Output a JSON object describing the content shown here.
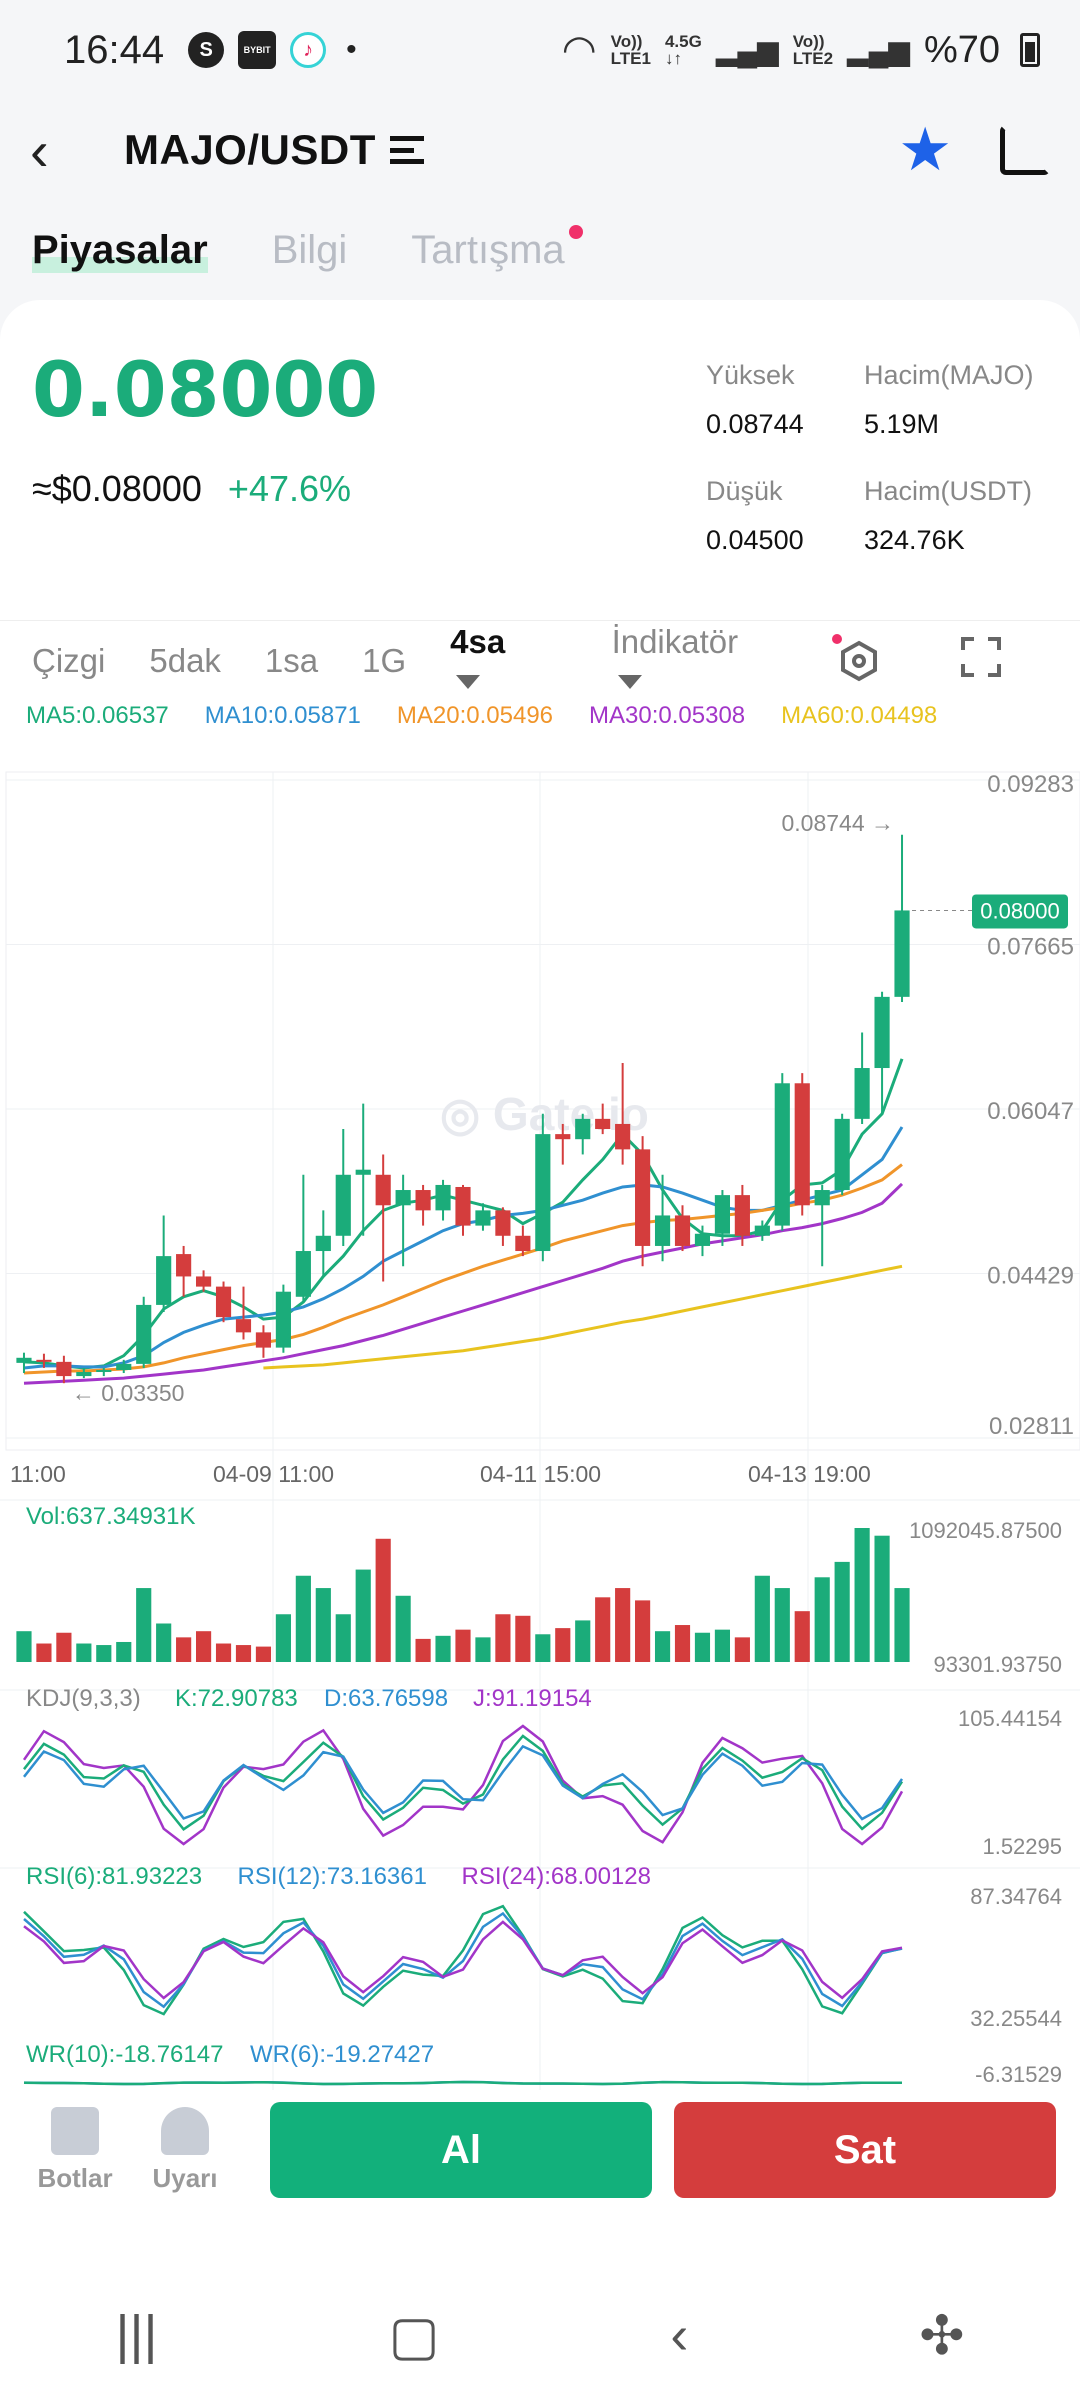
{
  "status": {
    "time": "16:44",
    "battery": "%70",
    "net1": "LTE1",
    "net2": "LTE2",
    "net_speed": "4.5G"
  },
  "header": {
    "pair": "MAJO/USDT"
  },
  "tabs": [
    {
      "label": "Piyasalar"
    },
    {
      "label": "Bilgi"
    },
    {
      "label": "Tartışma"
    }
  ],
  "price": {
    "last": "0.08000",
    "usd": "≈$0.08000",
    "change": "+47.6%"
  },
  "stats": {
    "high_label": "Yüksek",
    "high": "0.08744",
    "vol_majo_label": "Hacim(MAJO)",
    "vol_majo": "5.19M",
    "low_label": "Düşük",
    "low": "0.04500",
    "vol_usdt_label": "Hacim(USDT)",
    "vol_usdt": "324.76K"
  },
  "timeframes": [
    {
      "label": "Çizgi"
    },
    {
      "label": "5dak"
    },
    {
      "label": "1sa"
    },
    {
      "label": "1G"
    },
    {
      "label": "4sa"
    }
  ],
  "indicator_label": "İndikatör",
  "ma": [
    {
      "label": "MA5:0.06537",
      "color": "#1bac7a"
    },
    {
      "label": "MA10:0.05871",
      "color": "#2f8fd0"
    },
    {
      "label": "MA20:0.05496",
      "color": "#f0952a"
    },
    {
      "label": "MA30:0.05308",
      "color": "#a235c8"
    },
    {
      "label": "MA60:0.04498",
      "color": "#e8c31f"
    }
  ],
  "chart_data": {
    "type": "candlestick",
    "y_ticks": [
      "0.09283",
      "0.07665",
      "0.06047",
      "0.04429",
      "0.02811"
    ],
    "x_ticks": [
      "11:00",
      "04-09 11:00",
      "04-11 15:00",
      "04-13 19:00"
    ],
    "high_marker": "0.08744 →",
    "low_marker": "← 0.03350",
    "last_marker": "0.08000",
    "candles": [
      {
        "o": 0.0355,
        "h": 0.0365,
        "l": 0.0345,
        "c": 0.036
      },
      {
        "o": 0.0358,
        "h": 0.0364,
        "l": 0.035,
        "c": 0.0356
      },
      {
        "o": 0.0356,
        "h": 0.0362,
        "l": 0.0335,
        "c": 0.0342
      },
      {
        "o": 0.0342,
        "h": 0.035,
        "l": 0.034,
        "c": 0.0346
      },
      {
        "o": 0.0346,
        "h": 0.035,
        "l": 0.0342,
        "c": 0.0348
      },
      {
        "o": 0.0348,
        "h": 0.0358,
        "l": 0.0345,
        "c": 0.0354
      },
      {
        "o": 0.0354,
        "h": 0.042,
        "l": 0.035,
        "c": 0.0412
      },
      {
        "o": 0.0412,
        "h": 0.05,
        "l": 0.0405,
        "c": 0.046
      },
      {
        "o": 0.0462,
        "h": 0.047,
        "l": 0.042,
        "c": 0.044
      },
      {
        "o": 0.044,
        "h": 0.0446,
        "l": 0.0425,
        "c": 0.043
      },
      {
        "o": 0.043,
        "h": 0.0435,
        "l": 0.0395,
        "c": 0.04
      },
      {
        "o": 0.0398,
        "h": 0.043,
        "l": 0.0378,
        "c": 0.0385
      },
      {
        "o": 0.0385,
        "h": 0.0392,
        "l": 0.036,
        "c": 0.037
      },
      {
        "o": 0.037,
        "h": 0.0432,
        "l": 0.0365,
        "c": 0.0425
      },
      {
        "o": 0.042,
        "h": 0.054,
        "l": 0.0415,
        "c": 0.0465
      },
      {
        "o": 0.0465,
        "h": 0.0505,
        "l": 0.044,
        "c": 0.048
      },
      {
        "o": 0.048,
        "h": 0.0585,
        "l": 0.047,
        "c": 0.054
      },
      {
        "o": 0.054,
        "h": 0.061,
        "l": 0.048,
        "c": 0.0545
      },
      {
        "o": 0.054,
        "h": 0.056,
        "l": 0.0435,
        "c": 0.051
      },
      {
        "o": 0.051,
        "h": 0.054,
        "l": 0.045,
        "c": 0.0525
      },
      {
        "o": 0.0525,
        "h": 0.053,
        "l": 0.049,
        "c": 0.0505
      },
      {
        "o": 0.0505,
        "h": 0.0535,
        "l": 0.0495,
        "c": 0.053
      },
      {
        "o": 0.0528,
        "h": 0.053,
        "l": 0.048,
        "c": 0.049
      },
      {
        "o": 0.049,
        "h": 0.0512,
        "l": 0.0485,
        "c": 0.0505
      },
      {
        "o": 0.0505,
        "h": 0.0508,
        "l": 0.047,
        "c": 0.048
      },
      {
        "o": 0.048,
        "h": 0.049,
        "l": 0.046,
        "c": 0.0465
      },
      {
        "o": 0.0465,
        "h": 0.06,
        "l": 0.0455,
        "c": 0.058
      },
      {
        "o": 0.058,
        "h": 0.059,
        "l": 0.055,
        "c": 0.0575
      },
      {
        "o": 0.0575,
        "h": 0.06,
        "l": 0.056,
        "c": 0.0595
      },
      {
        "o": 0.0595,
        "h": 0.061,
        "l": 0.058,
        "c": 0.0585
      },
      {
        "o": 0.059,
        "h": 0.065,
        "l": 0.055,
        "c": 0.0565
      },
      {
        "o": 0.0565,
        "h": 0.0578,
        "l": 0.045,
        "c": 0.047
      },
      {
        "o": 0.047,
        "h": 0.054,
        "l": 0.0455,
        "c": 0.05
      },
      {
        "o": 0.05,
        "h": 0.051,
        "l": 0.0465,
        "c": 0.047
      },
      {
        "o": 0.047,
        "h": 0.049,
        "l": 0.046,
        "c": 0.0482
      },
      {
        "o": 0.0482,
        "h": 0.0525,
        "l": 0.047,
        "c": 0.052
      },
      {
        "o": 0.052,
        "h": 0.053,
        "l": 0.047,
        "c": 0.048
      },
      {
        "o": 0.048,
        "h": 0.0495,
        "l": 0.0475,
        "c": 0.049
      },
      {
        "o": 0.049,
        "h": 0.064,
        "l": 0.0485,
        "c": 0.063
      },
      {
        "o": 0.063,
        "h": 0.064,
        "l": 0.05,
        "c": 0.051
      },
      {
        "o": 0.051,
        "h": 0.053,
        "l": 0.045,
        "c": 0.0525
      },
      {
        "o": 0.0525,
        "h": 0.06,
        "l": 0.052,
        "c": 0.0595
      },
      {
        "o": 0.0595,
        "h": 0.068,
        "l": 0.059,
        "c": 0.0645
      },
      {
        "o": 0.0645,
        "h": 0.072,
        "l": 0.06,
        "c": 0.0715
      },
      {
        "o": 0.0715,
        "h": 0.08744,
        "l": 0.071,
        "c": 0.08
      }
    ],
    "ma_series": [
      {
        "name": "MA5",
        "color": "#1bac7a",
        "values": [
          0.0356,
          0.0355,
          0.0352,
          0.035,
          0.0352,
          0.0362,
          0.0382,
          0.0408,
          0.042,
          0.0426,
          0.042,
          0.041,
          0.0398,
          0.04,
          0.0415,
          0.044,
          0.046,
          0.0485,
          0.0505,
          0.0512,
          0.0515,
          0.052,
          0.0515,
          0.051,
          0.0505,
          0.0492,
          0.0502,
          0.0513,
          0.0535,
          0.0555,
          0.058,
          0.056,
          0.0525,
          0.0497,
          0.0482,
          0.048,
          0.048,
          0.0485,
          0.0515,
          0.053,
          0.0532,
          0.0545,
          0.058,
          0.06,
          0.0654
        ]
      },
      {
        "name": "MA10",
        "color": "#2f8fd0",
        "values": [
          0.035,
          0.0352,
          0.0352,
          0.0351,
          0.0351,
          0.0355,
          0.0362,
          0.0375,
          0.0385,
          0.0392,
          0.0398,
          0.04,
          0.0402,
          0.0405,
          0.041,
          0.0418,
          0.0428,
          0.044,
          0.0455,
          0.0465,
          0.0475,
          0.0485,
          0.0492,
          0.0495,
          0.05,
          0.0502,
          0.0505,
          0.051,
          0.0515,
          0.0522,
          0.0528,
          0.053,
          0.0528,
          0.0522,
          0.0515,
          0.0508,
          0.0505,
          0.0505,
          0.051,
          0.0515,
          0.052,
          0.0525,
          0.054,
          0.0555,
          0.0587
        ]
      },
      {
        "name": "MA20",
        "color": "#f0952a",
        "values": [
          0.0345,
          0.0346,
          0.0347,
          0.0347,
          0.0348,
          0.0349,
          0.0351,
          0.0355,
          0.036,
          0.0364,
          0.0368,
          0.0372,
          0.0375,
          0.0378,
          0.0383,
          0.039,
          0.0398,
          0.0405,
          0.0412,
          0.042,
          0.0428,
          0.0436,
          0.0443,
          0.045,
          0.0456,
          0.0462,
          0.0468,
          0.0475,
          0.048,
          0.0485,
          0.049,
          0.0493,
          0.0495,
          0.0496,
          0.0498,
          0.05,
          0.0502,
          0.0505,
          0.0508,
          0.0512,
          0.0515,
          0.052,
          0.0527,
          0.0535,
          0.055
        ]
      },
      {
        "name": "MA30",
        "color": "#a235c8",
        "values": [
          0.0335,
          0.0336,
          0.0337,
          0.0338,
          0.0339,
          0.034,
          0.0342,
          0.0344,
          0.0346,
          0.0348,
          0.0351,
          0.0354,
          0.0357,
          0.036,
          0.0364,
          0.0368,
          0.0372,
          0.0377,
          0.0382,
          0.0388,
          0.0394,
          0.04,
          0.0406,
          0.0412,
          0.0418,
          0.0424,
          0.043,
          0.0436,
          0.0442,
          0.0448,
          0.0455,
          0.046,
          0.0464,
          0.0468,
          0.0472,
          0.0475,
          0.0478,
          0.0481,
          0.0485,
          0.0488,
          0.0492,
          0.0497,
          0.0503,
          0.0512,
          0.0531
        ]
      },
      {
        "name": "MA60",
        "color": "#e8c31f",
        "values": [
          null,
          null,
          null,
          null,
          null,
          null,
          null,
          null,
          null,
          null,
          null,
          null,
          0.035,
          0.0351,
          0.0352,
          0.0353,
          0.0355,
          0.0357,
          0.0359,
          0.0361,
          0.0363,
          0.0365,
          0.0367,
          0.037,
          0.0373,
          0.0376,
          0.0379,
          0.0383,
          0.0387,
          0.0391,
          0.0395,
          0.0398,
          0.0402,
          0.0406,
          0.041,
          0.0414,
          0.0418,
          0.0422,
          0.0426,
          0.043,
          0.0434,
          0.0438,
          0.0442,
          0.0446,
          0.045
        ]
      }
    ],
    "volume": {
      "label": "Vol:637.34931K",
      "max_label": "1092045.87500",
      "min_label": "93301.93750",
      "values": [
        200,
        120,
        190,
        120,
        110,
        130,
        480,
        250,
        160,
        200,
        120,
        110,
        100,
        310,
        560,
        480,
        310,
        600,
        800,
        430,
        150,
        170,
        210,
        160,
        310,
        300,
        180,
        220,
        270,
        420,
        480,
        400,
        200,
        240,
        190,
        210,
        160,
        560,
        480,
        330,
        550,
        650,
        870,
        820,
        480
      ]
    },
    "kdj": {
      "label_head": "KDJ(9,3,3)",
      "k": "K:72.90783",
      "d": "D:63.76598",
      "j": "J:91.19154",
      "max": "105.44154",
      "min": "1.52295"
    },
    "rsi": {
      "r6": "RSI(6):81.93223",
      "r12": "RSI(12):73.16361",
      "r24": "RSI(24):68.00128",
      "max": "87.34764",
      "min": "32.25544"
    },
    "wr": {
      "w10": "WR(10):-18.76147",
      "w6": "WR(6):-19.27427",
      "max": "-6.31529"
    }
  },
  "bottom": {
    "bots": "Botlar",
    "alerts": "Uyarı",
    "buy": "Al",
    "sell": "Sat"
  },
  "colors": {
    "up": "#1bac7a",
    "down": "#d43d3d",
    "accent": "#1e62e8"
  }
}
